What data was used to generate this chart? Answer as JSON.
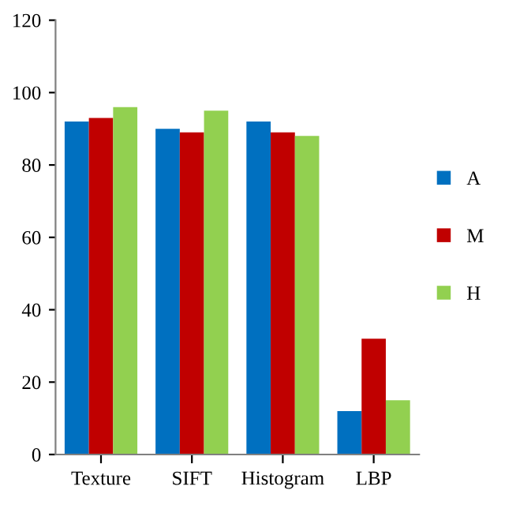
{
  "chart_data": {
    "type": "bar",
    "categories": [
      "Texture",
      "SIFT",
      "Histogram",
      "LBP"
    ],
    "series": [
      {
        "name": "A",
        "color": "#0070c0",
        "values": [
          92,
          90,
          92,
          12
        ]
      },
      {
        "name": "M",
        "color": "#c00000",
        "values": [
          93,
          89,
          89,
          32
        ]
      },
      {
        "name": "H",
        "color": "#92d050",
        "values": [
          96,
          95,
          88,
          15
        ]
      }
    ],
    "ylim": [
      0,
      120
    ],
    "yticks": [
      0,
      20,
      40,
      60,
      80,
      100,
      120
    ],
    "grid": false,
    "legend": "right"
  }
}
